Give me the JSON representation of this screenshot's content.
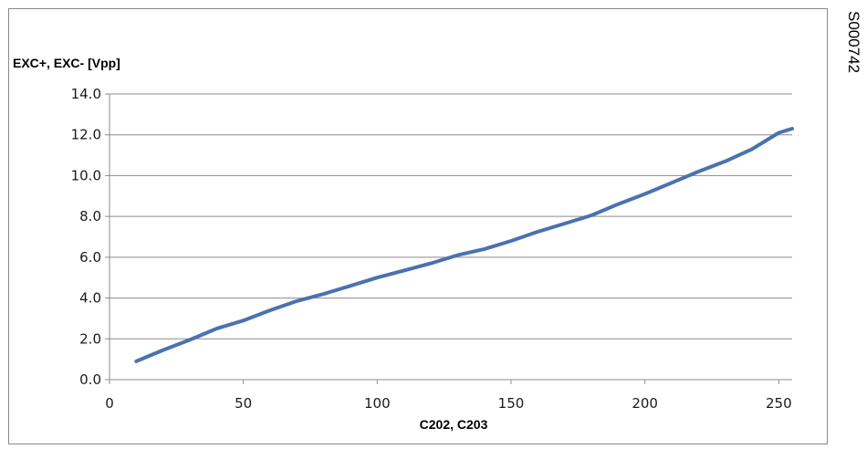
{
  "side_code": "S000742",
  "chart_data": {
    "type": "line",
    "title": "",
    "ylabel": "EXC+, EXC- [Vpp]",
    "xlabel": "C202, C203",
    "xlim": [
      0,
      255
    ],
    "ylim": [
      0,
      14
    ],
    "xticks": [
      0,
      50,
      100,
      150,
      200,
      250
    ],
    "xtick_labels": [
      "0",
      "50",
      "100",
      "150",
      "200",
      "250"
    ],
    "yticks": [
      0,
      2,
      4,
      6,
      8,
      10,
      12,
      14
    ],
    "ytick_labels": [
      "0.0",
      "2.0",
      "4.0",
      "6.0",
      "8.0",
      "10.0",
      "12.0",
      "14.0"
    ],
    "grid": "horizontal",
    "series": [
      {
        "color": "#4a72b0",
        "x": [
          10,
          20,
          30,
          40,
          50,
          60,
          70,
          80,
          90,
          100,
          110,
          120,
          130,
          140,
          150,
          160,
          170,
          180,
          190,
          200,
          210,
          220,
          230,
          240,
          250,
          255
        ],
        "y": [
          0.9,
          1.45,
          1.95,
          2.5,
          2.9,
          3.4,
          3.85,
          4.2,
          4.6,
          5.0,
          5.35,
          5.7,
          6.1,
          6.4,
          6.8,
          7.25,
          7.65,
          8.05,
          8.6,
          9.1,
          9.65,
          10.2,
          10.7,
          11.3,
          12.1,
          12.3
        ]
      }
    ]
  }
}
